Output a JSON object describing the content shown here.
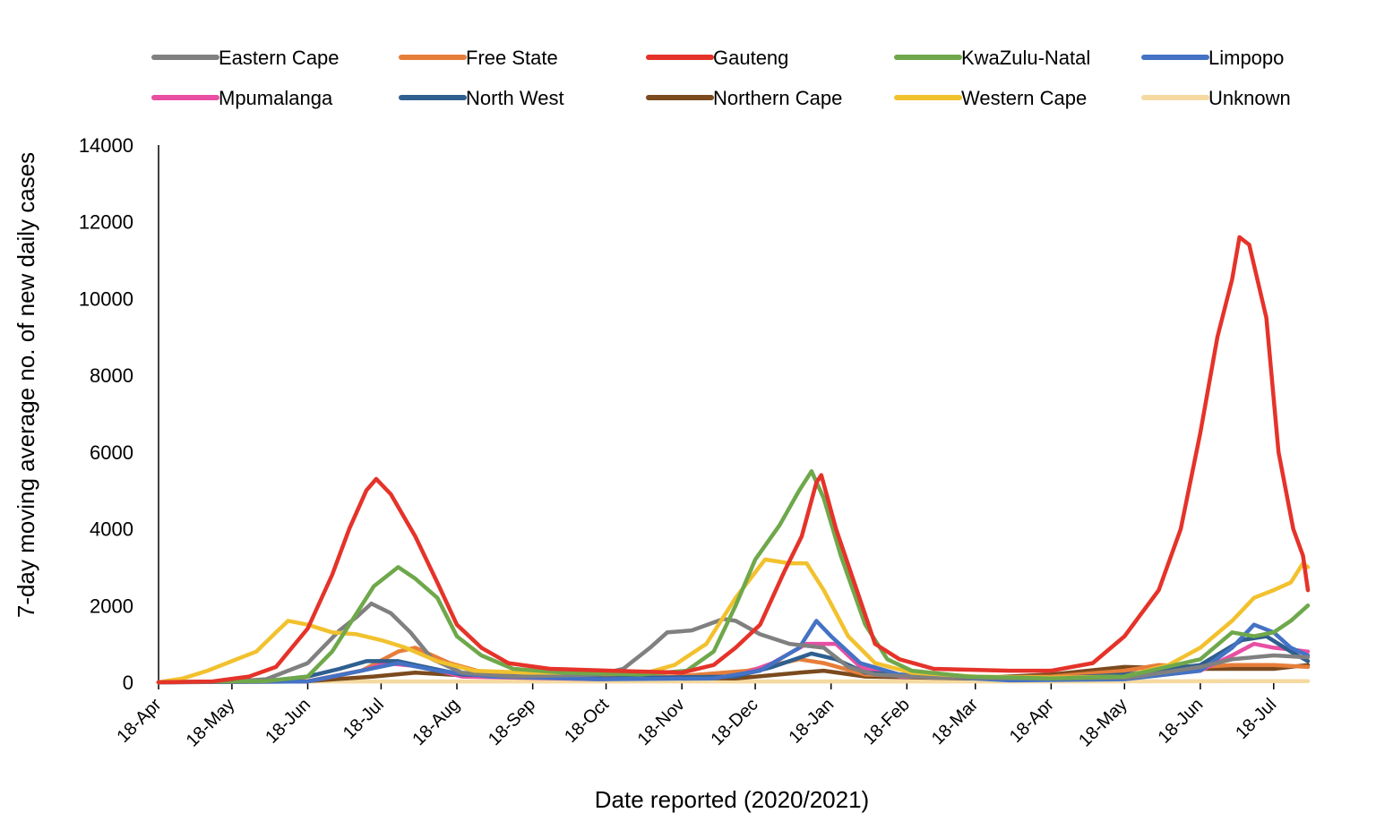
{
  "chart_data": {
    "type": "line",
    "title": "",
    "xlabel": "Date reported (2020/2021)",
    "ylabel": "7-day moving average no. of new daily cases",
    "ylim": [
      0,
      14000
    ],
    "yticks": [
      0,
      2000,
      4000,
      6000,
      8000,
      10000,
      12000,
      14000
    ],
    "x_start": "2020-04-18",
    "x_end": "2021-08-01",
    "x_tick_labels": [
      "18-Apr",
      "18-May",
      "18-Jun",
      "18-Jul",
      "18-Aug",
      "18-Sep",
      "18-Oct",
      "18-Nov",
      "18-Dec",
      "18-Jan",
      "18-Feb",
      "18-Mar",
      "18-Apr",
      "18-May",
      "18-Jun",
      "18-Jul"
    ],
    "x_tick_dates": [
      "2020-04-18",
      "2020-05-18",
      "2020-06-18",
      "2020-07-18",
      "2020-08-18",
      "2020-09-18",
      "2020-10-18",
      "2020-11-18",
      "2020-12-18",
      "2021-01-18",
      "2021-02-18",
      "2021-03-18",
      "2021-04-18",
      "2021-05-18",
      "2021-06-18",
      "2021-07-18"
    ],
    "grid": false,
    "legend_position": "top",
    "series": [
      {
        "name": "Eastern Cape",
        "color": "#808080",
        "points": [
          [
            "2020-04-18",
            0
          ],
          [
            "2020-05-18",
            20
          ],
          [
            "2020-06-01",
            80
          ],
          [
            "2020-06-18",
            500
          ],
          [
            "2020-07-01",
            1350
          ],
          [
            "2020-07-08",
            1700
          ],
          [
            "2020-07-14",
            2050
          ],
          [
            "2020-07-22",
            1800
          ],
          [
            "2020-07-30",
            1300
          ],
          [
            "2020-08-08",
            600
          ],
          [
            "2020-08-20",
            250
          ],
          [
            "2020-09-10",
            150
          ],
          [
            "2020-10-15",
            200
          ],
          [
            "2020-10-25",
            350
          ],
          [
            "2020-11-05",
            900
          ],
          [
            "2020-11-12",
            1300
          ],
          [
            "2020-11-22",
            1350
          ],
          [
            "2020-12-05",
            1650
          ],
          [
            "2020-12-10",
            1600
          ],
          [
            "2020-12-20",
            1250
          ],
          [
            "2021-01-01",
            1000
          ],
          [
            "2021-01-15",
            900
          ],
          [
            "2021-01-25",
            400
          ],
          [
            "2021-02-05",
            200
          ],
          [
            "2021-03-01",
            120
          ],
          [
            "2021-04-15",
            100
          ],
          [
            "2021-05-20",
            120
          ],
          [
            "2021-06-18",
            400
          ],
          [
            "2021-07-01",
            600
          ],
          [
            "2021-07-18",
            700
          ],
          [
            "2021-08-01",
            650
          ]
        ]
      },
      {
        "name": "Free State",
        "color": "#e67e3a",
        "points": [
          [
            "2020-04-18",
            0
          ],
          [
            "2020-06-18",
            30
          ],
          [
            "2020-07-10",
            300
          ],
          [
            "2020-07-25",
            800
          ],
          [
            "2020-08-01",
            900
          ],
          [
            "2020-08-15",
            500
          ],
          [
            "2020-09-01",
            200
          ],
          [
            "2020-10-15",
            120
          ],
          [
            "2020-11-15",
            150
          ],
          [
            "2020-12-15",
            300
          ],
          [
            "2021-01-05",
            600
          ],
          [
            "2021-01-15",
            500
          ],
          [
            "2021-02-01",
            200
          ],
          [
            "2021-03-15",
            120
          ],
          [
            "2021-04-18",
            150
          ],
          [
            "2021-05-18",
            300
          ],
          [
            "2021-06-01",
            450
          ],
          [
            "2021-06-18",
            400
          ],
          [
            "2021-07-01",
            450
          ],
          [
            "2021-07-18",
            450
          ],
          [
            "2021-08-01",
            400
          ]
        ]
      },
      {
        "name": "Gauteng",
        "color": "#e5332a",
        "points": [
          [
            "2020-04-18",
            0
          ],
          [
            "2020-05-10",
            20
          ],
          [
            "2020-05-25",
            150
          ],
          [
            "2020-06-05",
            400
          ],
          [
            "2020-06-18",
            1400
          ],
          [
            "2020-06-28",
            2800
          ],
          [
            "2020-07-05",
            4000
          ],
          [
            "2020-07-12",
            5000
          ],
          [
            "2020-07-16",
            5300
          ],
          [
            "2020-07-22",
            4900
          ],
          [
            "2020-08-01",
            3800
          ],
          [
            "2020-08-10",
            2600
          ],
          [
            "2020-08-18",
            1500
          ],
          [
            "2020-08-28",
            900
          ],
          [
            "2020-09-08",
            500
          ],
          [
            "2020-09-25",
            350
          ],
          [
            "2020-10-20",
            300
          ],
          [
            "2020-11-18",
            250
          ],
          [
            "2020-12-01",
            450
          ],
          [
            "2020-12-10",
            900
          ],
          [
            "2020-12-20",
            1500
          ],
          [
            "2020-12-30",
            2900
          ],
          [
            "2021-01-06",
            3800
          ],
          [
            "2021-01-12",
            5200
          ],
          [
            "2021-01-14",
            5400
          ],
          [
            "2021-01-20",
            4000
          ],
          [
            "2021-01-28",
            2500
          ],
          [
            "2021-02-05",
            1000
          ],
          [
            "2021-02-15",
            600
          ],
          [
            "2021-03-01",
            350
          ],
          [
            "2021-04-01",
            300
          ],
          [
            "2021-04-18",
            300
          ],
          [
            "2021-05-05",
            500
          ],
          [
            "2021-05-18",
            1200
          ],
          [
            "2021-06-01",
            2400
          ],
          [
            "2021-06-10",
            4000
          ],
          [
            "2021-06-18",
            6500
          ],
          [
            "2021-06-25",
            9000
          ],
          [
            "2021-07-01",
            10500
          ],
          [
            "2021-07-04",
            11600
          ],
          [
            "2021-07-08",
            11400
          ],
          [
            "2021-07-15",
            9500
          ],
          [
            "2021-07-20",
            6000
          ],
          [
            "2021-07-26",
            4000
          ],
          [
            "2021-07-30",
            3300
          ],
          [
            "2021-08-01",
            2400
          ]
        ]
      },
      {
        "name": "KwaZulu-Natal",
        "color": "#6fa84b",
        "points": [
          [
            "2020-04-18",
            0
          ],
          [
            "2020-06-01",
            30
          ],
          [
            "2020-06-18",
            150
          ],
          [
            "2020-06-28",
            800
          ],
          [
            "2020-07-08",
            1800
          ],
          [
            "2020-07-15",
            2500
          ],
          [
            "2020-07-25",
            3000
          ],
          [
            "2020-08-01",
            2700
          ],
          [
            "2020-08-10",
            2200
          ],
          [
            "2020-08-18",
            1200
          ],
          [
            "2020-08-28",
            700
          ],
          [
            "2020-09-10",
            350
          ],
          [
            "2020-10-01",
            250
          ],
          [
            "2020-11-01",
            200
          ],
          [
            "2020-11-20",
            300
          ],
          [
            "2020-12-01",
            800
          ],
          [
            "2020-12-10",
            2000
          ],
          [
            "2020-12-18",
            3200
          ],
          [
            "2020-12-28",
            4100
          ],
          [
            "2021-01-05",
            5000
          ],
          [
            "2021-01-10",
            5500
          ],
          [
            "2021-01-15",
            4800
          ],
          [
            "2021-01-22",
            3300
          ],
          [
            "2021-02-01",
            1500
          ],
          [
            "2021-02-10",
            600
          ],
          [
            "2021-02-20",
            300
          ],
          [
            "2021-03-15",
            150
          ],
          [
            "2021-04-18",
            100
          ],
          [
            "2021-05-18",
            150
          ],
          [
            "2021-06-18",
            600
          ],
          [
            "2021-07-01",
            1300
          ],
          [
            "2021-07-10",
            1200
          ],
          [
            "2021-07-18",
            1300
          ],
          [
            "2021-07-25",
            1600
          ],
          [
            "2021-08-01",
            2000
          ]
        ]
      },
      {
        "name": "Limpopo",
        "color": "#4472c4",
        "points": [
          [
            "2020-04-18",
            0
          ],
          [
            "2020-06-18",
            20
          ],
          [
            "2020-07-10",
            300
          ],
          [
            "2020-07-25",
            500
          ],
          [
            "2020-08-10",
            300
          ],
          [
            "2020-09-01",
            150
          ],
          [
            "2020-10-15",
            80
          ],
          [
            "2020-12-01",
            100
          ],
          [
            "2020-12-20",
            300
          ],
          [
            "2021-01-05",
            900
          ],
          [
            "2021-01-12",
            1600
          ],
          [
            "2021-01-18",
            1200
          ],
          [
            "2021-01-30",
            500
          ],
          [
            "2021-02-15",
            200
          ],
          [
            "2021-04-01",
            50
          ],
          [
            "2021-05-18",
            80
          ],
          [
            "2021-06-18",
            300
          ],
          [
            "2021-07-01",
            900
          ],
          [
            "2021-07-10",
            1500
          ],
          [
            "2021-07-18",
            1300
          ],
          [
            "2021-07-25",
            900
          ],
          [
            "2021-08-01",
            700
          ]
        ]
      },
      {
        "name": "Mpumalanga",
        "color": "#e84fa3",
        "points": [
          [
            "2020-04-18",
            0
          ],
          [
            "2020-06-18",
            20
          ],
          [
            "2020-07-10",
            300
          ],
          [
            "2020-07-20",
            500
          ],
          [
            "2020-08-05",
            400
          ],
          [
            "2020-08-20",
            150
          ],
          [
            "2020-10-15",
            80
          ],
          [
            "2020-12-10",
            150
          ],
          [
            "2020-12-25",
            500
          ],
          [
            "2021-01-08",
            1000
          ],
          [
            "2021-01-20",
            1000
          ],
          [
            "2021-01-30",
            400
          ],
          [
            "2021-02-15",
            150
          ],
          [
            "2021-04-18",
            80
          ],
          [
            "2021-05-18",
            120
          ],
          [
            "2021-06-18",
            300
          ],
          [
            "2021-07-01",
            700
          ],
          [
            "2021-07-10",
            1000
          ],
          [
            "2021-07-18",
            900
          ],
          [
            "2021-08-01",
            800
          ]
        ]
      },
      {
        "name": "North West",
        "color": "#2f5f8f",
        "points": [
          [
            "2020-04-18",
            0
          ],
          [
            "2020-06-01",
            30
          ],
          [
            "2020-06-18",
            150
          ],
          [
            "2020-07-01",
            350
          ],
          [
            "2020-07-12",
            550
          ],
          [
            "2020-07-25",
            550
          ],
          [
            "2020-08-05",
            400
          ],
          [
            "2020-08-20",
            200
          ],
          [
            "2020-10-15",
            100
          ],
          [
            "2020-12-10",
            150
          ],
          [
            "2020-12-25",
            400
          ],
          [
            "2021-01-10",
            750
          ],
          [
            "2021-01-20",
            600
          ],
          [
            "2021-02-01",
            250
          ],
          [
            "2021-03-15",
            100
          ],
          [
            "2021-04-18",
            100
          ],
          [
            "2021-05-18",
            200
          ],
          [
            "2021-06-18",
            450
          ],
          [
            "2021-07-05",
            1100
          ],
          [
            "2021-07-15",
            1200
          ],
          [
            "2021-07-25",
            800
          ],
          [
            "2021-08-01",
            550
          ]
        ]
      },
      {
        "name": "Northern Cape",
        "color": "#7b4a1e",
        "points": [
          [
            "2020-04-18",
            0
          ],
          [
            "2020-06-18",
            30
          ],
          [
            "2020-07-15",
            150
          ],
          [
            "2020-08-01",
            250
          ],
          [
            "2020-08-20",
            180
          ],
          [
            "2020-10-15",
            120
          ],
          [
            "2020-12-10",
            100
          ],
          [
            "2021-01-05",
            250
          ],
          [
            "2021-01-15",
            300
          ],
          [
            "2021-02-01",
            150
          ],
          [
            "2021-03-15",
            100
          ],
          [
            "2021-04-18",
            200
          ],
          [
            "2021-05-18",
            400
          ],
          [
            "2021-06-18",
            350
          ],
          [
            "2021-07-18",
            350
          ],
          [
            "2021-08-01",
            450
          ]
        ]
      },
      {
        "name": "Western Cape",
        "color": "#f2c12e",
        "points": [
          [
            "2020-04-18",
            0
          ],
          [
            "2020-04-28",
            100
          ],
          [
            "2020-05-08",
            300
          ],
          [
            "2020-05-18",
            550
          ],
          [
            "2020-05-28",
            800
          ],
          [
            "2020-06-05",
            1300
          ],
          [
            "2020-06-10",
            1600
          ],
          [
            "2020-06-18",
            1500
          ],
          [
            "2020-06-28",
            1300
          ],
          [
            "2020-07-08",
            1250
          ],
          [
            "2020-07-18",
            1100
          ],
          [
            "2020-07-28",
            900
          ],
          [
            "2020-08-10",
            550
          ],
          [
            "2020-08-25",
            300
          ],
          [
            "2020-09-15",
            250
          ],
          [
            "2020-10-15",
            250
          ],
          [
            "2020-11-01",
            200
          ],
          [
            "2020-11-15",
            450
          ],
          [
            "2020-11-28",
            1000
          ],
          [
            "2020-12-10",
            2200
          ],
          [
            "2020-12-22",
            3200
          ],
          [
            "2021-01-01",
            3100
          ],
          [
            "2021-01-08",
            3100
          ],
          [
            "2021-01-15",
            2400
          ],
          [
            "2021-01-25",
            1200
          ],
          [
            "2021-02-05",
            500
          ],
          [
            "2021-02-20",
            250
          ],
          [
            "2021-03-18",
            150
          ],
          [
            "2021-04-18",
            120
          ],
          [
            "2021-05-18",
            150
          ],
          [
            "2021-06-05",
            450
          ],
          [
            "2021-06-18",
            900
          ],
          [
            "2021-07-01",
            1600
          ],
          [
            "2021-07-10",
            2200
          ],
          [
            "2021-07-18",
            2400
          ],
          [
            "2021-07-25",
            2600
          ],
          [
            "2021-07-30",
            3100
          ],
          [
            "2021-08-01",
            3000
          ]
        ]
      },
      {
        "name": "Unknown",
        "color": "#f5d9a0",
        "points": [
          [
            "2020-04-18",
            0
          ],
          [
            "2020-06-18",
            20
          ],
          [
            "2020-10-15",
            20
          ],
          [
            "2021-04-18",
            20
          ],
          [
            "2021-08-01",
            30
          ]
        ]
      }
    ]
  }
}
